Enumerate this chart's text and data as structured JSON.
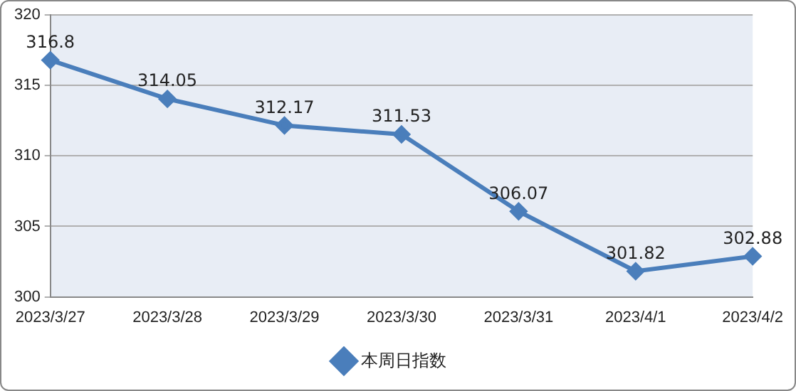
{
  "chart_data": {
    "type": "line",
    "categories": [
      "2023/3/27",
      "2023/3/28",
      "2023/3/29",
      "2023/3/30",
      "2023/3/31",
      "2023/4/1",
      "2023/4/2"
    ],
    "series": [
      {
        "name": "本周日指数",
        "color": "#4a7ebb",
        "values": [
          316.8,
          314.05,
          312.17,
          311.53,
          306.07,
          301.82,
          302.88
        ]
      }
    ],
    "ylim": [
      300,
      320
    ],
    "yticks": [
      300,
      305,
      310,
      315,
      320
    ],
    "grid": "y",
    "legend": "bottom",
    "marker": "diamond",
    "line_style": "solid",
    "data_labels": true
  }
}
